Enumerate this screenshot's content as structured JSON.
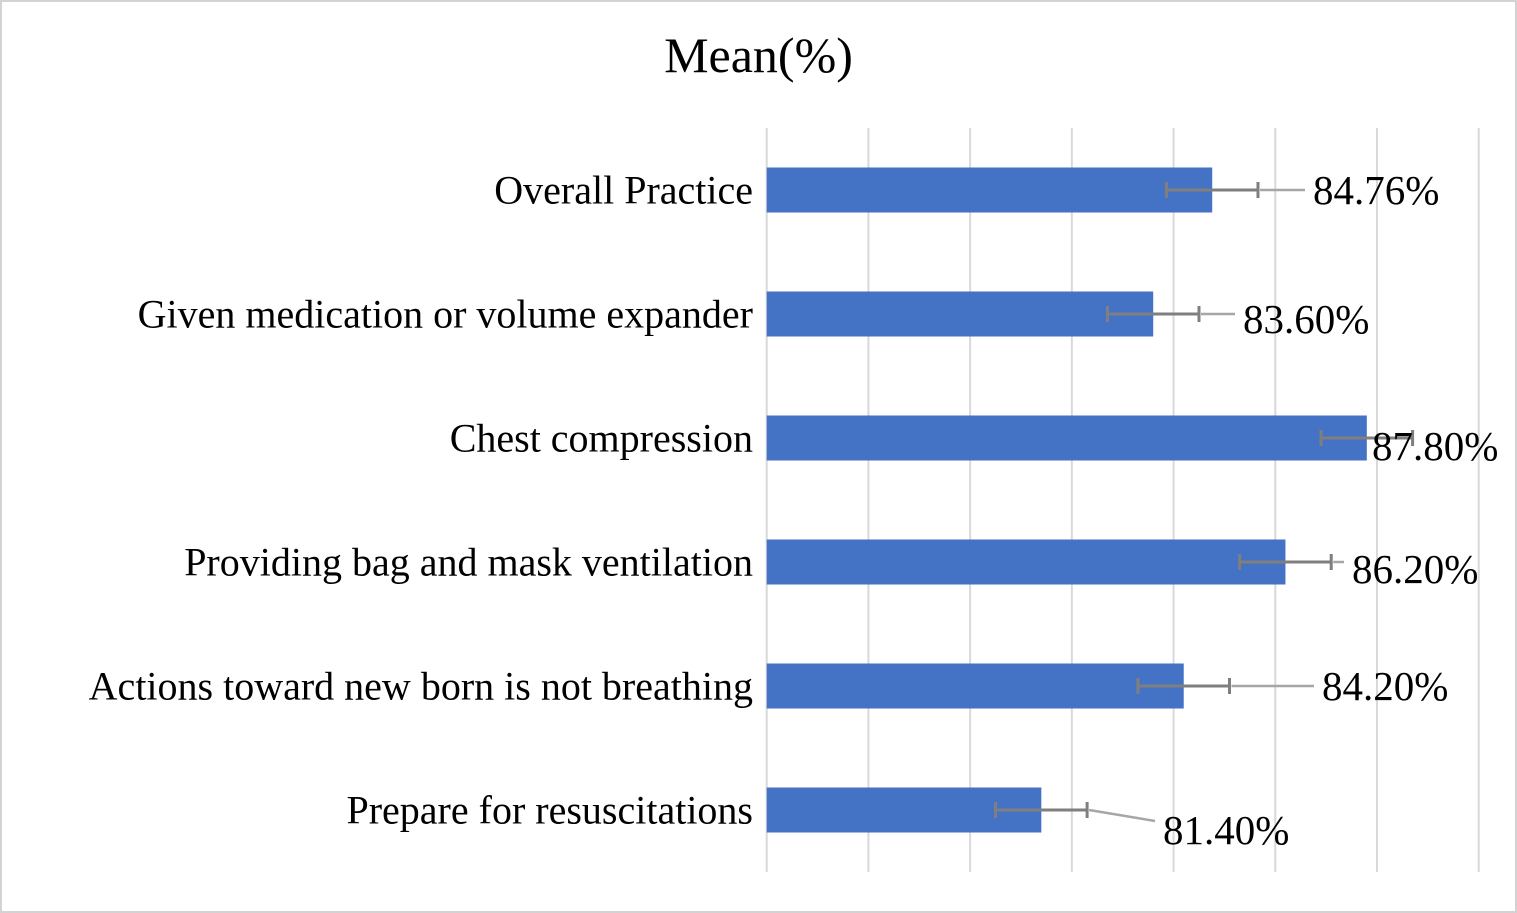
{
  "chart_data": {
    "type": "bar",
    "orientation": "horizontal",
    "title": "Mean(%)",
    "categories": [
      "Overall Practice",
      "Given medication or volume expander",
      "Chest compression",
      "Providing bag and mask ventilation",
      "Actions toward new born is not breathing",
      "Prepare for resuscitations"
    ],
    "values": [
      84.76,
      83.6,
      87.8,
      86.2,
      84.2,
      81.4
    ],
    "value_labels": [
      "84.76%",
      "83.60%",
      "87.80%",
      "86.20%",
      "84.20%",
      "81.40%"
    ],
    "error_plus_minus": [
      0.9,
      0.9,
      0.9,
      0.9,
      0.9,
      0.9
    ],
    "xlim": [
      76,
      90
    ],
    "x_major_unit": 2,
    "grid": "vertical-only",
    "axis_tick_labels_visible": false,
    "legend": "none",
    "colors": {
      "bar": "#4472C4",
      "error_bar": "#7F7F7F",
      "leader_line": "#A6A6A6",
      "gridline": "#D9D9D9",
      "text": "#000000",
      "background": "#FFFFFF",
      "frame_border": "#D4D2D2"
    }
  }
}
